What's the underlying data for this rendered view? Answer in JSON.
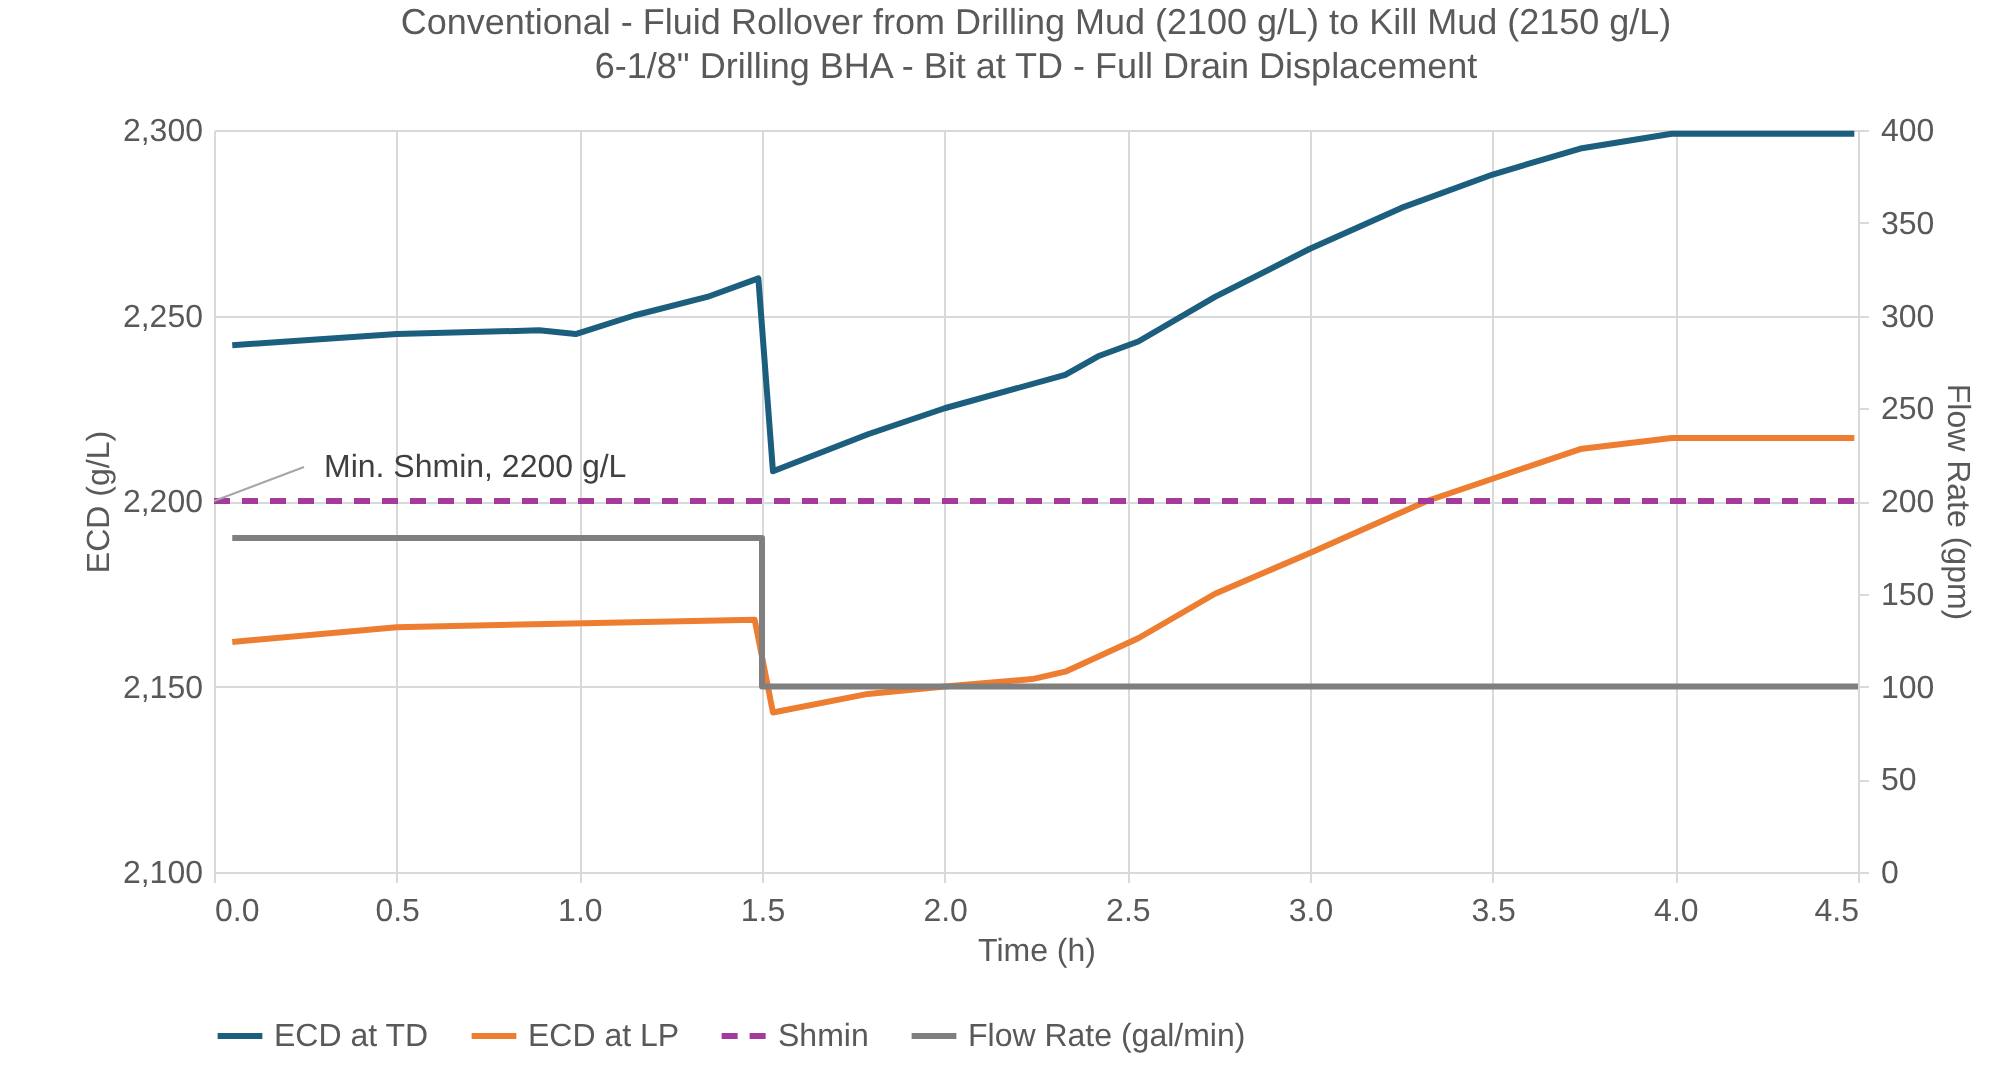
{
  "chart_data": {
    "type": "line",
    "title": [
      "Conventional - Fluid Rollover from Drilling Mud (2100 g/L) to Kill Mud (2150 g/L)",
      "6-1/8\" Drilling BHA - Bit at TD - Full Drain Displacement"
    ],
    "xlabel": "Time (h)",
    "ylabel": "ECD (g/L)",
    "y2label": "Flow Rate (gpm)",
    "xlim": [
      0,
      4.5
    ],
    "xticks": [
      {
        "value": 0,
        "label": "0.0"
      },
      0.5,
      {
        "value": 1,
        "label": "1.0"
      },
      1.5,
      {
        "value": 2,
        "label": "2.0"
      },
      2.5,
      {
        "value": 3,
        "label": "3.0"
      },
      3.5,
      {
        "value": 4,
        "label": "4.0"
      },
      4.5
    ],
    "ylim": [
      2100,
      2300
    ],
    "yticks": [
      {
        "value": 2100,
        "label": "2,100"
      },
      {
        "value": 2150,
        "label": "2,150"
      },
      {
        "value": 2200,
        "label": "2,200"
      },
      {
        "value": 2250,
        "label": "2,250"
      },
      {
        "value": 2300,
        "label": "2,300"
      }
    ],
    "y2lim": [
      0,
      400
    ],
    "y2ticks": [
      0,
      50,
      100,
      150,
      200,
      250,
      300,
      350,
      400
    ],
    "grid": true,
    "legend": "bottom",
    "marker": "none",
    "annotations": [
      {
        "text": "Min. Shmin, 2200 g/L",
        "x": 0,
        "y": 2200
      }
    ],
    "series": [
      {
        "name": "ECD at TD",
        "color": "#1b5e7e",
        "x": [
          0.05,
          0.5,
          0.89,
          0.99,
          1.15,
          1.35,
          1.49,
          1.53,
          1.79,
          2.0,
          2.33,
          2.42,
          2.53,
          2.74,
          3.0,
          3.25,
          3.5,
          3.74,
          3.99,
          4.49
        ],
        "values": [
          2242,
          2245,
          2246,
          2245,
          2250,
          2255,
          2260,
          2208,
          2218,
          2225,
          2234,
          2239,
          2243,
          2255,
          2268,
          2279,
          2288,
          2295,
          2299,
          2299
        ]
      },
      {
        "name": "ECD at LP",
        "color": "#ed7d31",
        "x": [
          0.05,
          0.5,
          0.98,
          1.48,
          1.53,
          1.79,
          2.0,
          2.24,
          2.33,
          2.53,
          2.74,
          3.0,
          3.32,
          3.5,
          3.74,
          3.99,
          4.49
        ],
        "values": [
          2162,
          2166,
          2167,
          2168,
          2143,
          2148,
          2150,
          2152,
          2154,
          2163,
          2175,
          2186,
          2200,
          2206,
          2214,
          2217,
          2217
        ]
      },
      {
        "name": "Shmin",
        "color": "#a33a9c",
        "line_style": "dashed",
        "x": [
          0,
          4.5
        ],
        "values": [
          2200,
          2200
        ]
      },
      {
        "name": "Flow Rate  (gal/min)",
        "color": "#7f7f7f",
        "axis": "y2",
        "x": [
          0.05,
          1.5,
          1.5,
          4.5
        ],
        "values": [
          180,
          180,
          100,
          100
        ]
      }
    ]
  }
}
